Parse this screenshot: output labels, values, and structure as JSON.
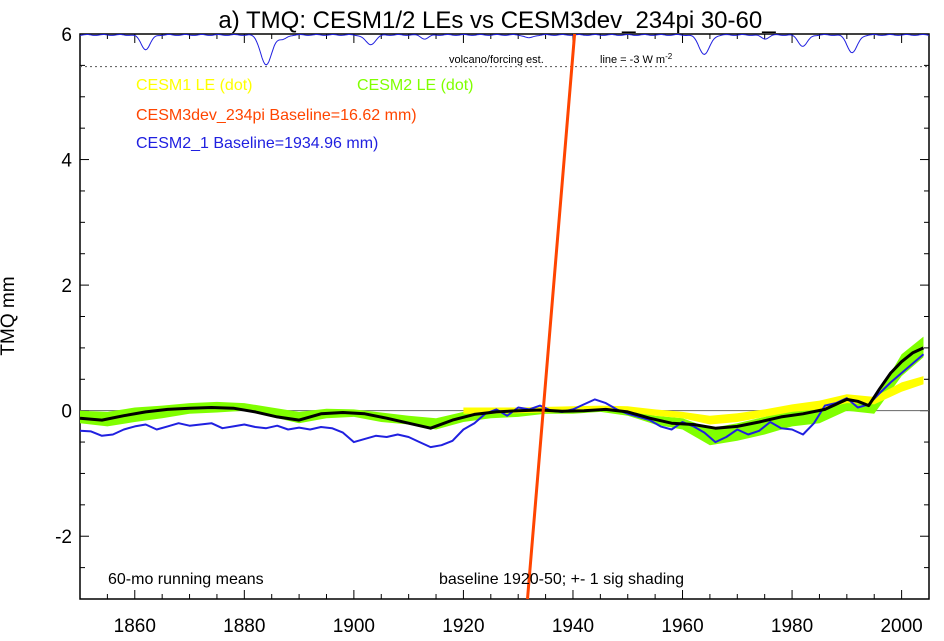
{
  "chart_data": {
    "type": "line",
    "title": "a) TMQ: CESM1/2 LEs vs CESM3dev_234pi 30-60_",
    "xlabel": "",
    "ylabel": "TMQ mm",
    "xlim": [
      1850,
      2005
    ],
    "ylim": [
      -3,
      6
    ],
    "xticks": [
      1860,
      1880,
      1900,
      1920,
      1940,
      1960,
      1980,
      2000
    ],
    "yticks": [
      -2,
      0,
      2,
      4,
      6
    ],
    "ytick_labels": [
      "-2",
      "0",
      "2",
      "4",
      "6"
    ],
    "grid": false,
    "legend_position": "top-left",
    "colors": {
      "cesm1_le": "#ffff00",
      "cesm2_le": "#80ff00",
      "cesm3dev": "#ff4500",
      "cesm2_1": "#2020e0",
      "ensemble_mean": "#000000",
      "volcano": "#2020e0",
      "reference": "#555555"
    },
    "legend": {
      "cesm1_le": "CESM1 LE (dot)",
      "cesm2_le": "CESM2 LE (dot)",
      "cesm3dev": "CESM3dev_234pi Baseline=16.62 mm)",
      "cesm2_1": "CESM2_1 Baseline=1934.96 mm)"
    },
    "annotations": {
      "volcano_label": "volcano/forcing est.",
      "volcano_scale": "line = -3 W m",
      "volcano_scale_sup": "-2",
      "running_mean": "60-mo running means",
      "baseline_note": "baseline 1920-50; +- 1 sig shading"
    },
    "dotted_reference_y": 5.48,
    "series": [
      {
        "name": "CESM2 LE (dot)",
        "kind": "band",
        "x": [
          1850,
          1855,
          1860,
          1865,
          1870,
          1875,
          1880,
          1885,
          1890,
          1895,
          1900,
          1905,
          1910,
          1915,
          1920,
          1925,
          1930,
          1935,
          1940,
          1945,
          1950,
          1955,
          1960,
          1965,
          1970,
          1975,
          1980,
          1985,
          1990,
          1995,
          2000,
          2004
        ],
        "lower": [
          -0.2,
          -0.25,
          -0.18,
          -0.12,
          -0.05,
          -0.03,
          0.0,
          -0.1,
          -0.2,
          -0.12,
          -0.1,
          -0.18,
          -0.22,
          -0.3,
          -0.18,
          -0.12,
          -0.1,
          -0.05,
          -0.05,
          -0.02,
          -0.08,
          -0.22,
          -0.3,
          -0.55,
          -0.48,
          -0.38,
          -0.25,
          -0.2,
          0.0,
          -0.05,
          0.55,
          0.85
        ],
        "upper": [
          0.0,
          -0.02,
          0.05,
          0.08,
          0.12,
          0.14,
          0.12,
          0.05,
          -0.02,
          0.03,
          0.02,
          -0.03,
          -0.08,
          -0.12,
          -0.02,
          0.02,
          0.05,
          0.05,
          0.05,
          0.07,
          0.02,
          -0.08,
          -0.12,
          -0.28,
          -0.2,
          -0.1,
          0.02,
          0.1,
          0.22,
          0.15,
          0.9,
          1.18
        ]
      },
      {
        "name": "CESM1 LE (dot)",
        "kind": "band",
        "x": [
          1920,
          1925,
          1930,
          1935,
          1940,
          1945,
          1950,
          1955,
          1960,
          1965,
          1970,
          1975,
          1980,
          1985,
          1990,
          1995,
          2000,
          2004
        ],
        "lower": [
          -0.05,
          -0.05,
          -0.04,
          -0.03,
          -0.02,
          0.0,
          -0.02,
          -0.08,
          -0.12,
          -0.22,
          -0.18,
          -0.1,
          -0.02,
          0.02,
          0.12,
          0.1,
          0.3,
          0.42
        ],
        "upper": [
          0.05,
          0.05,
          0.05,
          0.06,
          0.07,
          0.08,
          0.07,
          0.02,
          -0.02,
          -0.08,
          -0.04,
          0.02,
          0.1,
          0.16,
          0.26,
          0.22,
          0.45,
          0.55
        ]
      },
      {
        "name": "CESM2_1 Baseline=1934.96 mm)",
        "kind": "line",
        "x": [
          1850,
          1852,
          1854,
          1856,
          1858,
          1860,
          1862,
          1864,
          1866,
          1868,
          1870,
          1872,
          1874,
          1876,
          1878,
          1880,
          1882,
          1884,
          1886,
          1888,
          1890,
          1892,
          1894,
          1896,
          1898,
          1900,
          1902,
          1904,
          1906,
          1908,
          1910,
          1912,
          1914,
          1916,
          1918,
          1920,
          1922,
          1924,
          1926,
          1928,
          1930,
          1932,
          1934,
          1936,
          1938,
          1940,
          1942,
          1944,
          1946,
          1948,
          1950,
          1952,
          1954,
          1956,
          1958,
          1960,
          1962,
          1964,
          1966,
          1968,
          1970,
          1972,
          1974,
          1976,
          1978,
          1980,
          1982,
          1984,
          1986,
          1988,
          1990,
          1992,
          1994,
          1996,
          1998,
          2000,
          2002,
          2004
        ],
        "y": [
          -0.32,
          -0.33,
          -0.4,
          -0.38,
          -0.3,
          -0.25,
          -0.22,
          -0.3,
          -0.25,
          -0.2,
          -0.24,
          -0.22,
          -0.2,
          -0.28,
          -0.25,
          -0.22,
          -0.26,
          -0.28,
          -0.24,
          -0.3,
          -0.27,
          -0.3,
          -0.26,
          -0.28,
          -0.35,
          -0.5,
          -0.45,
          -0.4,
          -0.42,
          -0.38,
          -0.42,
          -0.5,
          -0.58,
          -0.55,
          -0.48,
          -0.3,
          -0.2,
          -0.05,
          0.02,
          -0.08,
          0.05,
          0.02,
          0.08,
          0.0,
          -0.02,
          0.02,
          0.1,
          0.18,
          0.12,
          0.02,
          -0.05,
          -0.1,
          -0.15,
          -0.25,
          -0.3,
          -0.18,
          -0.25,
          -0.35,
          -0.5,
          -0.42,
          -0.3,
          -0.38,
          -0.32,
          -0.18,
          -0.28,
          -0.3,
          -0.38,
          -0.2,
          0.08,
          0.12,
          0.2,
          0.05,
          0.1,
          0.28,
          0.45,
          0.6,
          0.75,
          0.9
        ]
      },
      {
        "name": "CESM1/2 ensemble mean",
        "kind": "line",
        "x": [
          1850,
          1854,
          1858,
          1862,
          1866,
          1870,
          1874,
          1878,
          1882,
          1886,
          1890,
          1894,
          1898,
          1902,
          1906,
          1910,
          1914,
          1918,
          1922,
          1926,
          1930,
          1934,
          1938,
          1942,
          1946,
          1950,
          1954,
          1958,
          1962,
          1966,
          1970,
          1974,
          1978,
          1982,
          1986,
          1990,
          1992,
          1994,
          1996,
          1998,
          2000,
          2002,
          2004
        ],
        "y": [
          -0.12,
          -0.15,
          -0.08,
          -0.02,
          0.02,
          0.04,
          0.05,
          0.04,
          -0.02,
          -0.1,
          -0.15,
          -0.05,
          -0.03,
          -0.05,
          -0.12,
          -0.2,
          -0.28,
          -0.15,
          -0.06,
          -0.02,
          0.0,
          0.01,
          -0.01,
          0.0,
          0.02,
          -0.02,
          -0.12,
          -0.2,
          -0.22,
          -0.28,
          -0.25,
          -0.18,
          -0.1,
          -0.05,
          0.02,
          0.18,
          0.15,
          0.08,
          0.35,
          0.6,
          0.78,
          0.92,
          1.0
        ]
      },
      {
        "name": "CESM3dev_234pi Baseline=16.62 mm)",
        "kind": "line",
        "x": [
          1931.7,
          1940.3
        ],
        "y": [
          -3.0,
          6.0
        ]
      }
    ]
  }
}
